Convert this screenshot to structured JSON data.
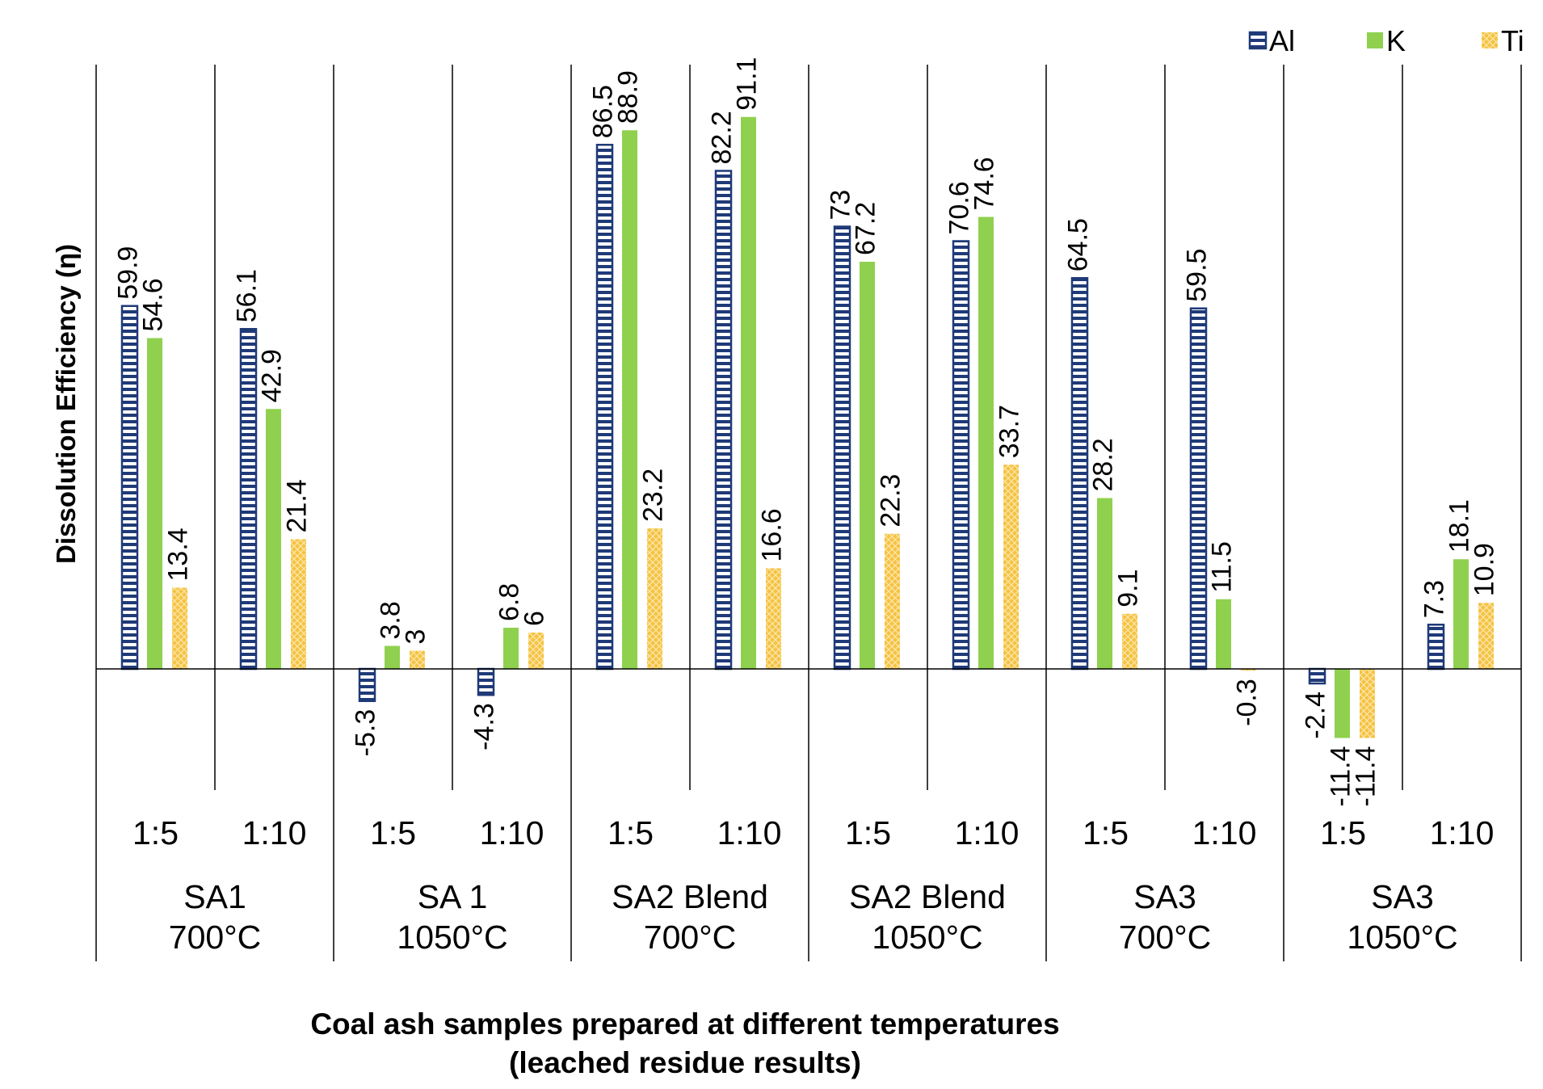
{
  "chart_data": {
    "type": "bar",
    "title": "",
    "xlabel": [
      "Coal ash samples prepared at different temperatures",
      "(leached residue results)"
    ],
    "ylabel": "Dissolution Efficiency (η)",
    "ylim": [
      -25,
      105
    ],
    "grid": false,
    "legend_position": "top-right",
    "groups": [
      {
        "name": [
          "SA1",
          "700°C"
        ],
        "ratios": [
          "1:5",
          "1:10"
        ]
      },
      {
        "name": [
          "SA 1",
          "1050°C"
        ],
        "ratios": [
          "1:5",
          "1:10"
        ]
      },
      {
        "name": [
          "SA2 Blend",
          "700°C"
        ],
        "ratios": [
          "1:5",
          "1:10"
        ]
      },
      {
        "name": [
          "SA2 Blend",
          "1050°C"
        ],
        "ratios": [
          "1:5",
          "1:10"
        ]
      },
      {
        "name": [
          "SA3",
          "700°C"
        ],
        "ratios": [
          "1:5",
          "1:10"
        ]
      },
      {
        "name": [
          "SA3",
          "1050°C"
        ],
        "ratios": [
          "1:5",
          "1:10"
        ]
      }
    ],
    "series": [
      {
        "name": "Al",
        "color": "#1f3a78",
        "pattern": "horizontal-stripes",
        "values": [
          59.9,
          56.1,
          -5.3,
          -4.3,
          86.5,
          82.2,
          73,
          70.6,
          64.5,
          59.5,
          -2.4,
          7.3
        ],
        "labels": [
          "59.9",
          "56.1",
          "-5.3",
          "-4.3",
          "86.5",
          "82.2",
          "73",
          "70.6",
          "64.5",
          "59.5",
          "-2.4",
          "7.3"
        ]
      },
      {
        "name": "K",
        "color": "#8fd14f",
        "pattern": "solid",
        "values": [
          54.6,
          42.9,
          3.8,
          6.8,
          88.9,
          91.1,
          67.2,
          74.6,
          28.2,
          11.5,
          -11.4,
          18.1
        ],
        "labels": [
          "54.6",
          "42.9",
          "3.8",
          "6.8",
          "88.9",
          "91.1",
          "67.2",
          "74.6",
          "28.2",
          "11.5",
          "-11.4",
          "18.1"
        ]
      },
      {
        "name": "Ti",
        "color": "#f5c242",
        "pattern": "crosshatch",
        "values": [
          13.4,
          21.4,
          3,
          6,
          23.2,
          16.6,
          22.3,
          33.7,
          9.1,
          -0.3,
          -11.4,
          10.9
        ],
        "labels": [
          "13.4",
          "21.4",
          "3",
          "6",
          "23.2",
          "16.6",
          "22.3",
          "33.7",
          "9.1",
          "-0.3",
          "-11.4",
          "10.9"
        ]
      }
    ]
  }
}
